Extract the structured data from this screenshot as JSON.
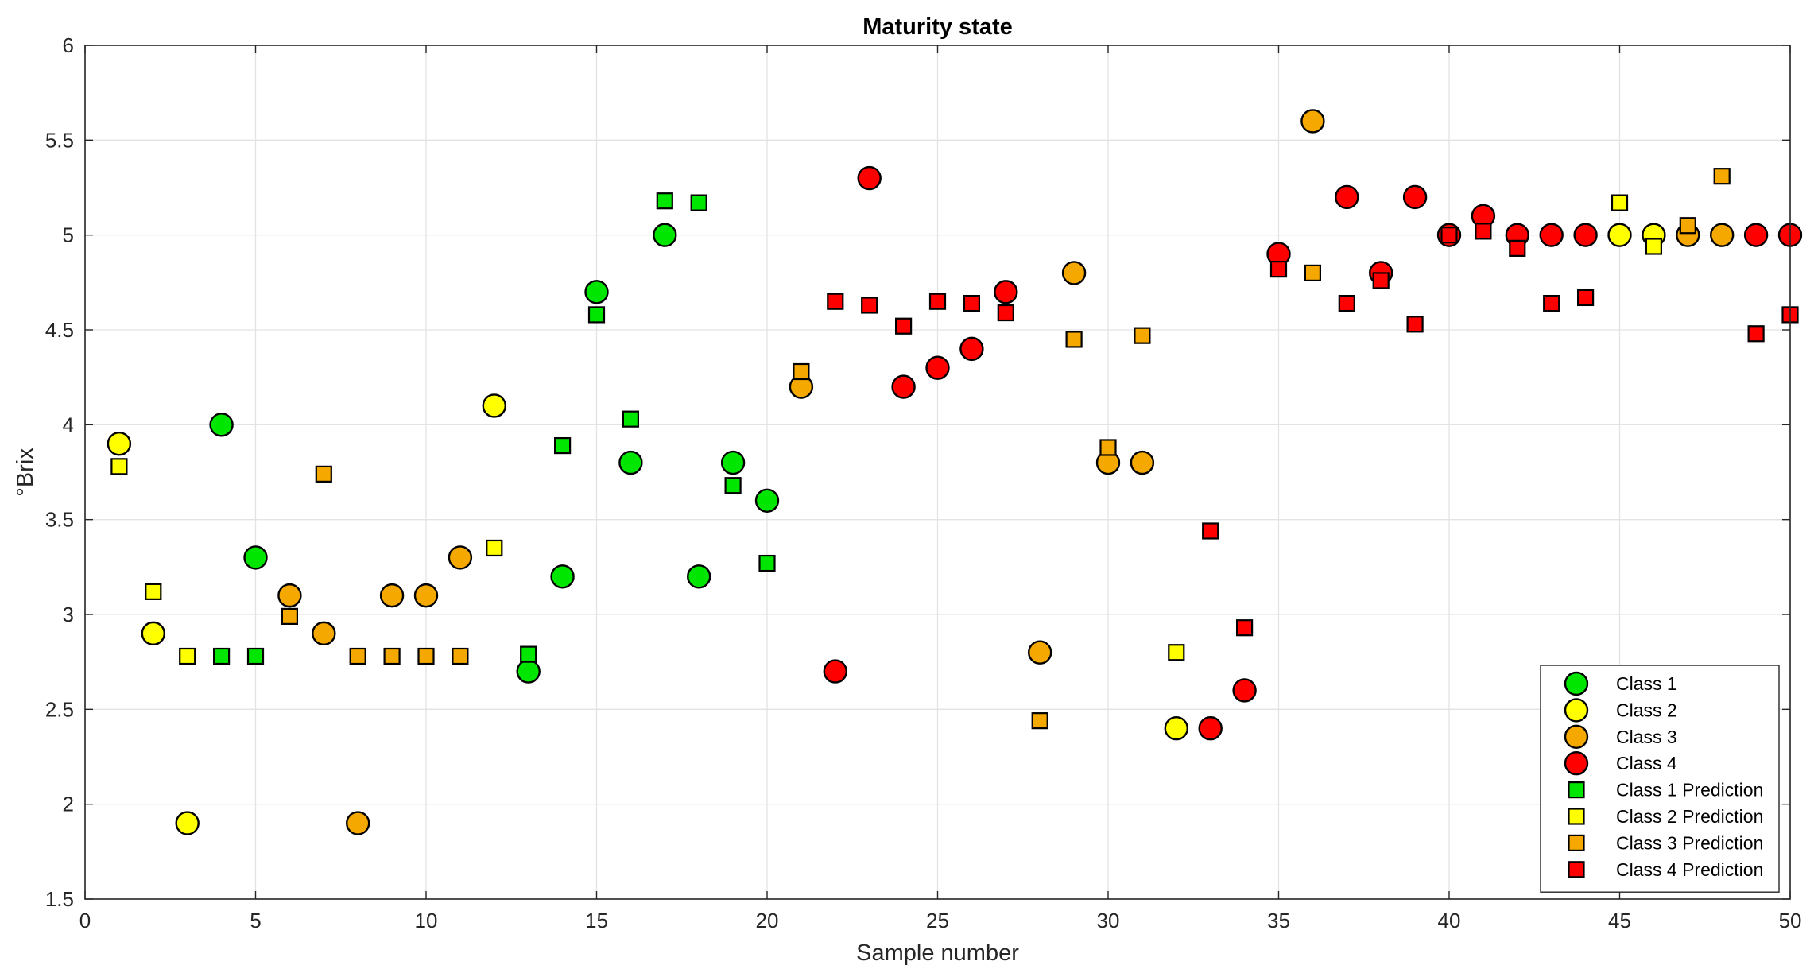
{
  "chart_data": {
    "type": "scatter",
    "title": "Maturity state",
    "xlabel": "Sample number",
    "ylabel": "°Brix",
    "xlim": [
      0,
      50
    ],
    "ylim": [
      1.5,
      6
    ],
    "xticks": [
      0,
      5,
      10,
      15,
      20,
      25,
      30,
      35,
      40,
      45,
      50
    ],
    "yticks": [
      1.5,
      2,
      2.5,
      3,
      3.5,
      4,
      4.5,
      5,
      5.5,
      6
    ],
    "ytick_labels": [
      "1.5",
      "2",
      "2.5",
      "3",
      "3.5",
      "4",
      "4.5",
      "5",
      "5.5",
      "6"
    ],
    "grid": true,
    "legend_position": "bottom-right",
    "series": [
      {
        "name": "Class 1",
        "marker": "circle",
        "color": "#00e600",
        "x": [
          4,
          5,
          13,
          14,
          15,
          16,
          17,
          18,
          19,
          20
        ],
        "y": [
          4.0,
          3.3,
          2.7,
          3.2,
          4.7,
          3.8,
          5.0,
          3.2,
          3.8,
          3.6
        ]
      },
      {
        "name": "Class 2",
        "marker": "circle",
        "color": "#ffff00",
        "x": [
          1,
          2,
          3,
          12,
          32,
          45,
          46
        ],
        "y": [
          3.9,
          2.9,
          1.9,
          4.1,
          2.4,
          5.0,
          5.0
        ]
      },
      {
        "name": "Class 3",
        "marker": "circle",
        "color": "#f5a800",
        "x": [
          6,
          7,
          8,
          9,
          10,
          11,
          21,
          28,
          29,
          30,
          31,
          36,
          47,
          48
        ],
        "y": [
          3.1,
          2.9,
          1.9,
          3.1,
          3.1,
          3.3,
          4.2,
          2.8,
          4.8,
          3.8,
          3.8,
          5.6,
          5.0,
          5.0
        ]
      },
      {
        "name": "Class 4",
        "marker": "circle",
        "color": "#ff0000",
        "x": [
          22,
          23,
          24,
          25,
          26,
          27,
          33,
          34,
          35,
          37,
          38,
          39,
          40,
          41,
          42,
          43,
          44,
          49,
          50
        ],
        "y": [
          2.7,
          5.3,
          4.2,
          4.3,
          4.4,
          4.7,
          2.4,
          2.6,
          4.9,
          5.2,
          4.8,
          5.2,
          5.0,
          5.1,
          5.0,
          5.0,
          5.0,
          5.0,
          5.0
        ]
      },
      {
        "name": "Class 1 Prediction",
        "marker": "square",
        "color": "#00e600",
        "x": [
          4,
          5,
          13,
          14,
          15,
          16,
          17,
          18,
          19,
          20
        ],
        "y": [
          2.78,
          2.78,
          2.79,
          3.89,
          4.58,
          4.03,
          5.18,
          5.17,
          3.68,
          3.27
        ]
      },
      {
        "name": "Class 2 Prediction",
        "marker": "square",
        "color": "#ffff00",
        "x": [
          1,
          2,
          3,
          12,
          32,
          45,
          46
        ],
        "y": [
          3.78,
          3.12,
          2.78,
          3.35,
          2.8,
          5.17,
          4.94
        ]
      },
      {
        "name": "Class 3 Prediction",
        "marker": "square",
        "color": "#f5a800",
        "x": [
          6,
          7,
          8,
          9,
          10,
          11,
          21,
          28,
          29,
          30,
          31,
          36,
          47,
          48
        ],
        "y": [
          2.99,
          3.74,
          2.78,
          2.78,
          2.78,
          2.78,
          4.28,
          2.44,
          4.45,
          3.88,
          4.47,
          4.8,
          5.05,
          5.31
        ]
      },
      {
        "name": "Class 4 Prediction",
        "marker": "square",
        "color": "#ff0000",
        "x": [
          22,
          23,
          24,
          25,
          26,
          27,
          33,
          34,
          35,
          37,
          38,
          39,
          40,
          41,
          42,
          43,
          44,
          49,
          50
        ],
        "y": [
          4.65,
          4.63,
          4.52,
          4.65,
          4.64,
          4.59,
          3.44,
          2.93,
          4.82,
          4.64,
          4.76,
          4.53,
          5.0,
          5.02,
          4.93,
          4.64,
          4.67,
          4.48,
          4.58
        ]
      }
    ]
  }
}
